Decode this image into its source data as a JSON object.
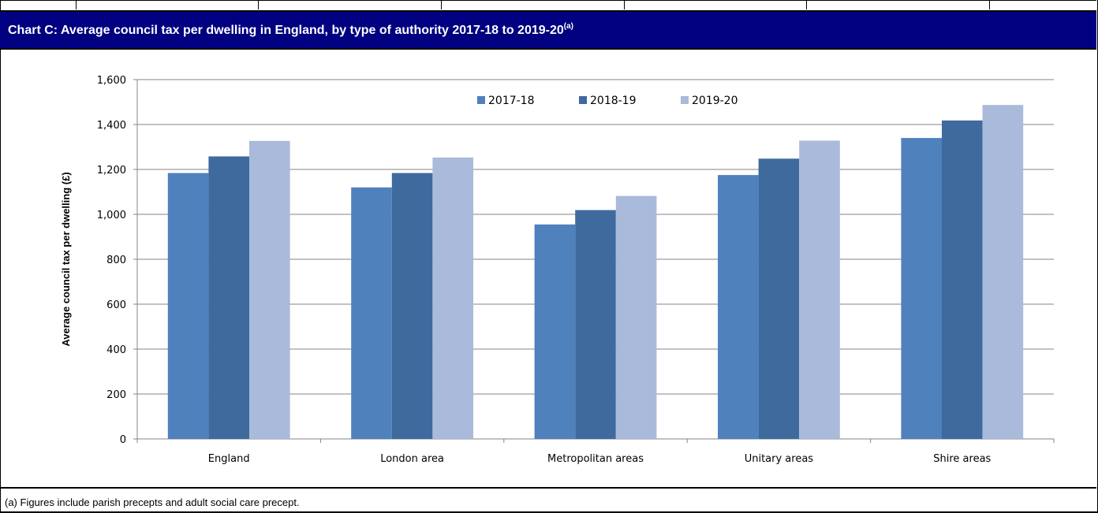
{
  "header": {
    "title": "Chart C: Average council tax per dwelling in England, by type of authority 2017-18 to 2019-20",
    "title_superscript": "(a)"
  },
  "footnote": "(a) Figures include parish precepts and adult social care precept.",
  "chart_data": {
    "type": "bar",
    "title": "Chart C: Average council tax per dwelling in England, by type of authority 2017-18 to 2019-20",
    "xlabel": "",
    "ylabel": "Average council tax per dwelling (£)",
    "ylim": [
      0,
      1600
    ],
    "yticks": [
      0,
      200,
      400,
      600,
      800,
      1000,
      1200,
      1400,
      1600
    ],
    "ytick_labels": [
      "0",
      "200",
      "400",
      "600",
      "800",
      "1,000",
      "1,200",
      "1,400",
      "1,600"
    ],
    "grid": true,
    "legend_position": "top-center",
    "categories": [
      "England",
      "London area",
      "Metropolitan areas",
      "Unitary areas",
      "Shire areas"
    ],
    "series": [
      {
        "name": "2017-18",
        "color": "#4F81BD",
        "values": [
          1184,
          1120,
          955,
          1175,
          1340
        ]
      },
      {
        "name": "2018-19",
        "color": "#3F6A9E",
        "values": [
          1258,
          1184,
          1019,
          1248,
          1418
        ]
      },
      {
        "name": "2019-20",
        "color": "#A9BADA",
        "values": [
          1327,
          1253,
          1082,
          1328,
          1487
        ]
      }
    ]
  }
}
